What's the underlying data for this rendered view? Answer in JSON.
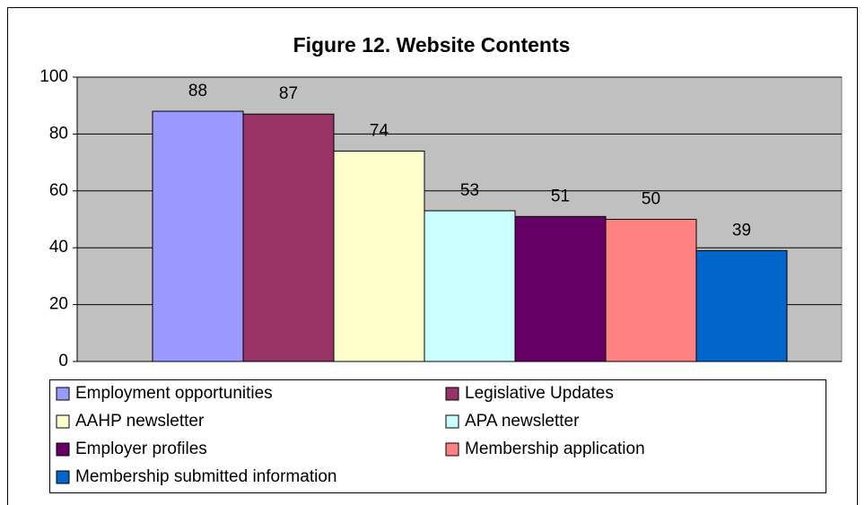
{
  "chart_data": {
    "type": "bar",
    "title": "Figure 12.  Website Contents",
    "series": [
      {
        "name": "Employment opportunities",
        "color": "#9999ff",
        "values": [
          88
        ]
      },
      {
        "name": "Legislative Updates",
        "color": "#993366",
        "values": [
          87
        ]
      },
      {
        "name": "AAHP newsletter",
        "color": "#ffffcc",
        "values": [
          74
        ]
      },
      {
        "name": "APA newsletter",
        "color": "#ccffff",
        "values": [
          53
        ]
      },
      {
        "name": "Employer profiles",
        "color": "#660066",
        "values": [
          51
        ]
      },
      {
        "name": "Membership application",
        "color": "#ff8080",
        "values": [
          50
        ]
      },
      {
        "name": "Membership submitted information",
        "color": "#0066cc",
        "values": [
          39
        ]
      }
    ],
    "ylim": [
      0,
      100
    ],
    "yticks": [
      0,
      20,
      40,
      60,
      80,
      100
    ],
    "grid": true,
    "legend": "bottom",
    "plot_background": "#c0c0c0"
  }
}
